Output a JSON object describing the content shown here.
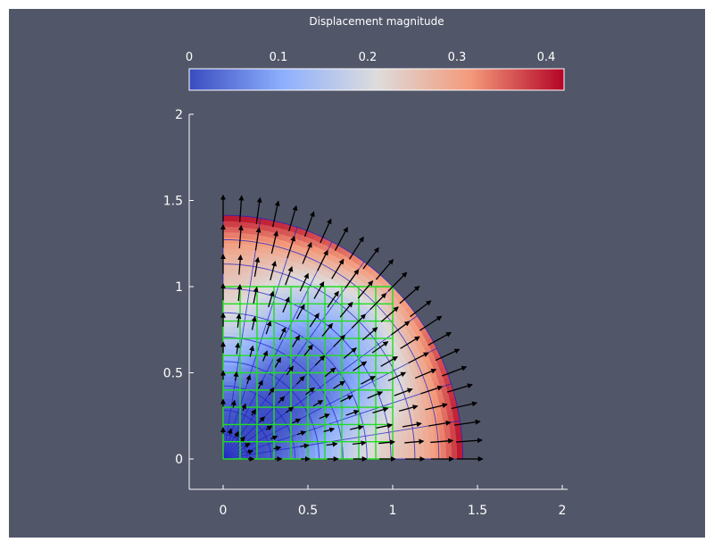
{
  "chart_data": {
    "type": "heatmap",
    "title": "",
    "xlabel": "",
    "ylabel": "",
    "xlim": [
      -0.2,
      2.0
    ],
    "ylim": [
      -0.18,
      2.0
    ],
    "x_ticks": [
      "0",
      "0.5",
      "1",
      "1.5",
      "2"
    ],
    "x_tick_values": [
      0,
      0.5,
      1,
      1.5,
      2
    ],
    "y_ticks": [
      "0",
      "0.5",
      "1",
      "1.5",
      "2"
    ],
    "y_tick_values": [
      0,
      0.5,
      1,
      1.5,
      2
    ],
    "grid": false,
    "colorbar": {
      "title": "Displacement magnitude",
      "range": [
        0,
        0.42
      ],
      "ticks": [
        "0",
        "0.1",
        "0.2",
        "0.3",
        "0.4"
      ],
      "tick_values": [
        0,
        0.1,
        0.2,
        0.3,
        0.4
      ],
      "placement": "top",
      "colormap": [
        "#3b4cc0",
        "#8db0fe",
        "#dddcdc",
        "#f49a7b",
        "#b40426"
      ]
    },
    "deformed_domain": {
      "shape": "quarter-annulus",
      "inner_radius": 0,
      "outer_radius": 1.414,
      "mesh_color": "#2020c8",
      "mesh_radial_lines": 10,
      "mesh_rings": 10
    },
    "reference_mesh": {
      "shape": "unit-square",
      "extent": [
        0,
        1
      ],
      "divisions": 10,
      "color": "#22dd22"
    },
    "displacement_field": "radial",
    "arrow_color": "#000000"
  }
}
